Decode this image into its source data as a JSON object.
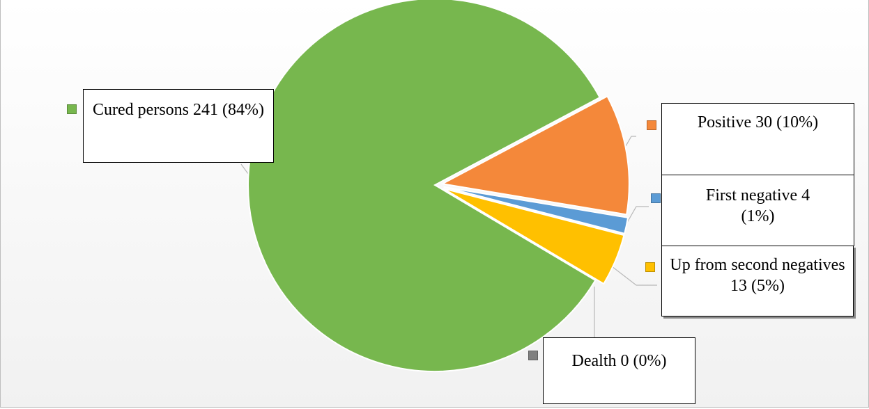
{
  "chart_data": {
    "type": "pie",
    "slices": [
      {
        "label": "Cured persons 241 (84%)",
        "value": 241,
        "percent": 84,
        "color": "#77b74e"
      },
      {
        "label": "Positive 30 (10%)",
        "value": 30,
        "percent": 10,
        "color": "#f4883a"
      },
      {
        "label": "First negative 4 (1%)",
        "value": 4,
        "percent": 1,
        "color": "#5b9bd5"
      },
      {
        "label": "Up from second negatives 13 (5%)",
        "value": 13,
        "percent": 5,
        "color": "#ffc000"
      },
      {
        "label": "Dealth 0 (0%)",
        "value": 0,
        "percent": 0,
        "color": "#808080"
      }
    ],
    "labels": {
      "cured": "Cured persons 241 (84%)",
      "positive": "Positive 30 (10%)",
      "first_negative": "First negative 4 (1%)",
      "second_negatives": "Up from second negatives 13 (5%)",
      "death": "Dealth 0 (0%)"
    },
    "legend": "beside-labels",
    "title": ""
  }
}
